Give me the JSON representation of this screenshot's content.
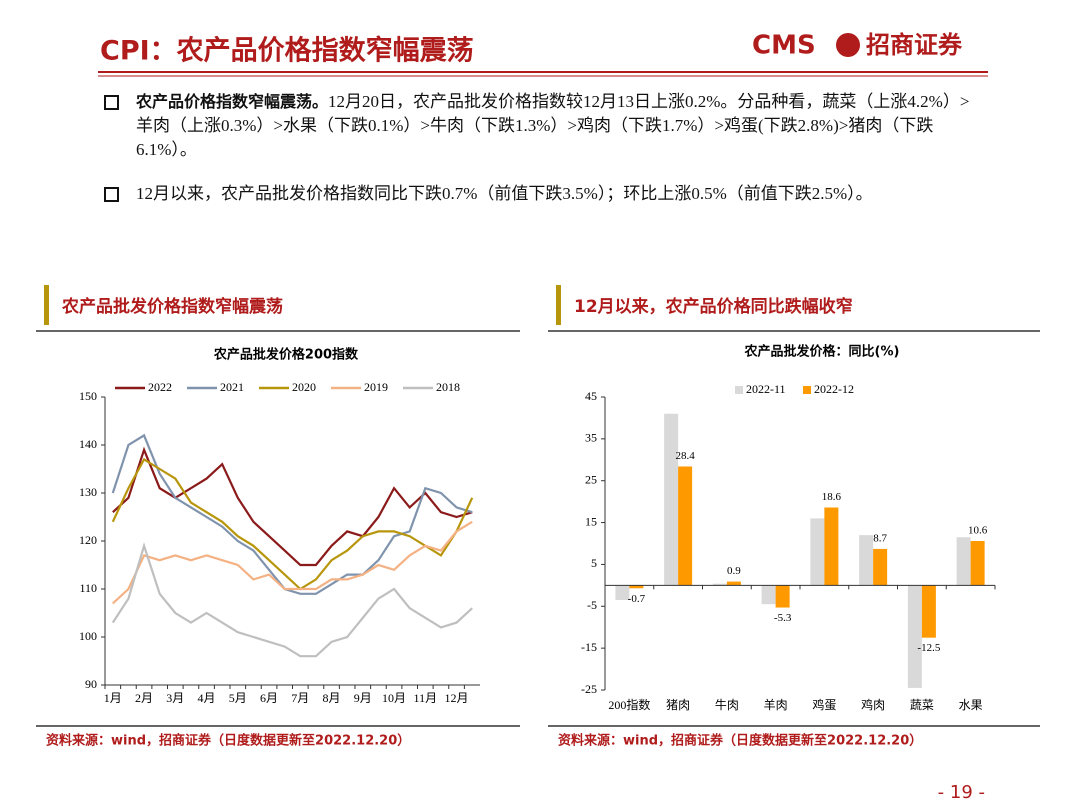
{
  "header": {
    "title": "CPI：农产品价格指数窄幅震荡",
    "logo_text": "CMS",
    "logo_name": "招商证券"
  },
  "bullets": [
    {
      "bold": "农产品价格指数窄幅震荡。",
      "text": "12月20日，农产品批发价格指数较12月13日上涨0.2%。分品种看，蔬菜（上涨4.2%）>羊肉（上涨0.3%）>水果（下跌0.1%）>牛肉（下跌1.3%）>鸡肉（下跌1.7%）>鸡蛋(下跌2.8%)>猪肉（下跌6.1%）。"
    },
    {
      "text": "12月以来，农产品批发价格指数同比下跌0.7%（前值下跌3.5%）；环比上涨0.5%（前值下跌2.5%）。"
    }
  ],
  "sections": [
    {
      "heading": "农产品批发价格指数窄幅震荡",
      "source": "资料来源：wind，招商证券（日度数据更新至2022.12.20）"
    },
    {
      "heading": "12月以来，农产品价格同比跌幅收窄",
      "source": "资料来源：wind，招商证券（日度数据更新至2022.12.20）"
    }
  ],
  "page_number": "- 19 -",
  "chart_data": [
    {
      "type": "line",
      "title": "农产品批发价格200指数",
      "legend": "top",
      "categories": [
        "1月",
        null,
        "2月",
        null,
        "3月",
        null,
        "4月",
        null,
        "5月",
        null,
        "6月",
        null,
        "7月",
        null,
        "8月",
        null,
        "9月",
        null,
        "10月",
        null,
        "11月",
        null,
        "12月",
        null
      ],
      "ylim": [
        90,
        150
      ],
      "yticks": [
        90,
        100,
        110,
        120,
        130,
        140,
        150
      ],
      "series": [
        {
          "name": "2022",
          "color": "#8b1a1a",
          "values": [
            126,
            129,
            139,
            131,
            129,
            131,
            133,
            136,
            129,
            124,
            121,
            118,
            115,
            115,
            119,
            122,
            121,
            125,
            131,
            127,
            130,
            126,
            125,
            126
          ]
        },
        {
          "name": "2021",
          "color": "#7f93ad",
          "values": [
            130,
            140,
            142,
            134,
            129,
            127,
            125,
            123,
            120,
            118,
            114,
            110,
            109,
            109,
            111,
            113,
            113,
            116,
            121,
            122,
            131,
            130,
            127,
            126
          ]
        },
        {
          "name": "2020",
          "color": "#b8960c",
          "values": [
            124,
            131,
            137,
            135,
            133,
            128,
            126,
            124,
            121,
            119,
            116,
            113,
            110,
            112,
            116,
            118,
            121,
            122,
            122,
            121,
            119,
            117,
            122,
            129
          ]
        },
        {
          "name": "2019",
          "color": "#f4b183",
          "values": [
            107,
            110,
            117,
            116,
            117,
            116,
            117,
            116,
            115,
            112,
            113,
            110,
            110,
            110,
            112,
            112,
            113,
            115,
            114,
            117,
            119,
            118,
            122,
            124
          ]
        },
        {
          "name": "2018",
          "color": "#bfbfbf",
          "values": [
            103,
            108,
            119,
            109,
            105,
            103,
            105,
            103,
            101,
            100,
            99,
            98,
            96,
            96,
            99,
            100,
            104,
            108,
            110,
            106,
            104,
            102,
            103,
            106
          ]
        }
      ]
    },
    {
      "type": "bar",
      "title": "农产品批发价格：同比(%)",
      "legend": "top",
      "categories": [
        "200指数",
        "猪肉",
        "牛肉",
        "羊肉",
        "鸡蛋",
        "鸡肉",
        "蔬菜",
        "水果"
      ],
      "ylim": [
        -25,
        45
      ],
      "yticks": [
        -25,
        -15,
        -5,
        5,
        15,
        25,
        35,
        45
      ],
      "series": [
        {
          "name": "2022-11",
          "color": "#d9d9d9",
          "values": [
            -3.5,
            41,
            0.4,
            -4.5,
            16,
            12,
            -24.5,
            11.5
          ]
        },
        {
          "name": "2022-12",
          "color": "#ff9900",
          "data_labels": true,
          "values": [
            -0.7,
            28.4,
            0.9,
            -5.3,
            18.6,
            8.7,
            -12.5,
            10.6
          ]
        }
      ]
    }
  ]
}
